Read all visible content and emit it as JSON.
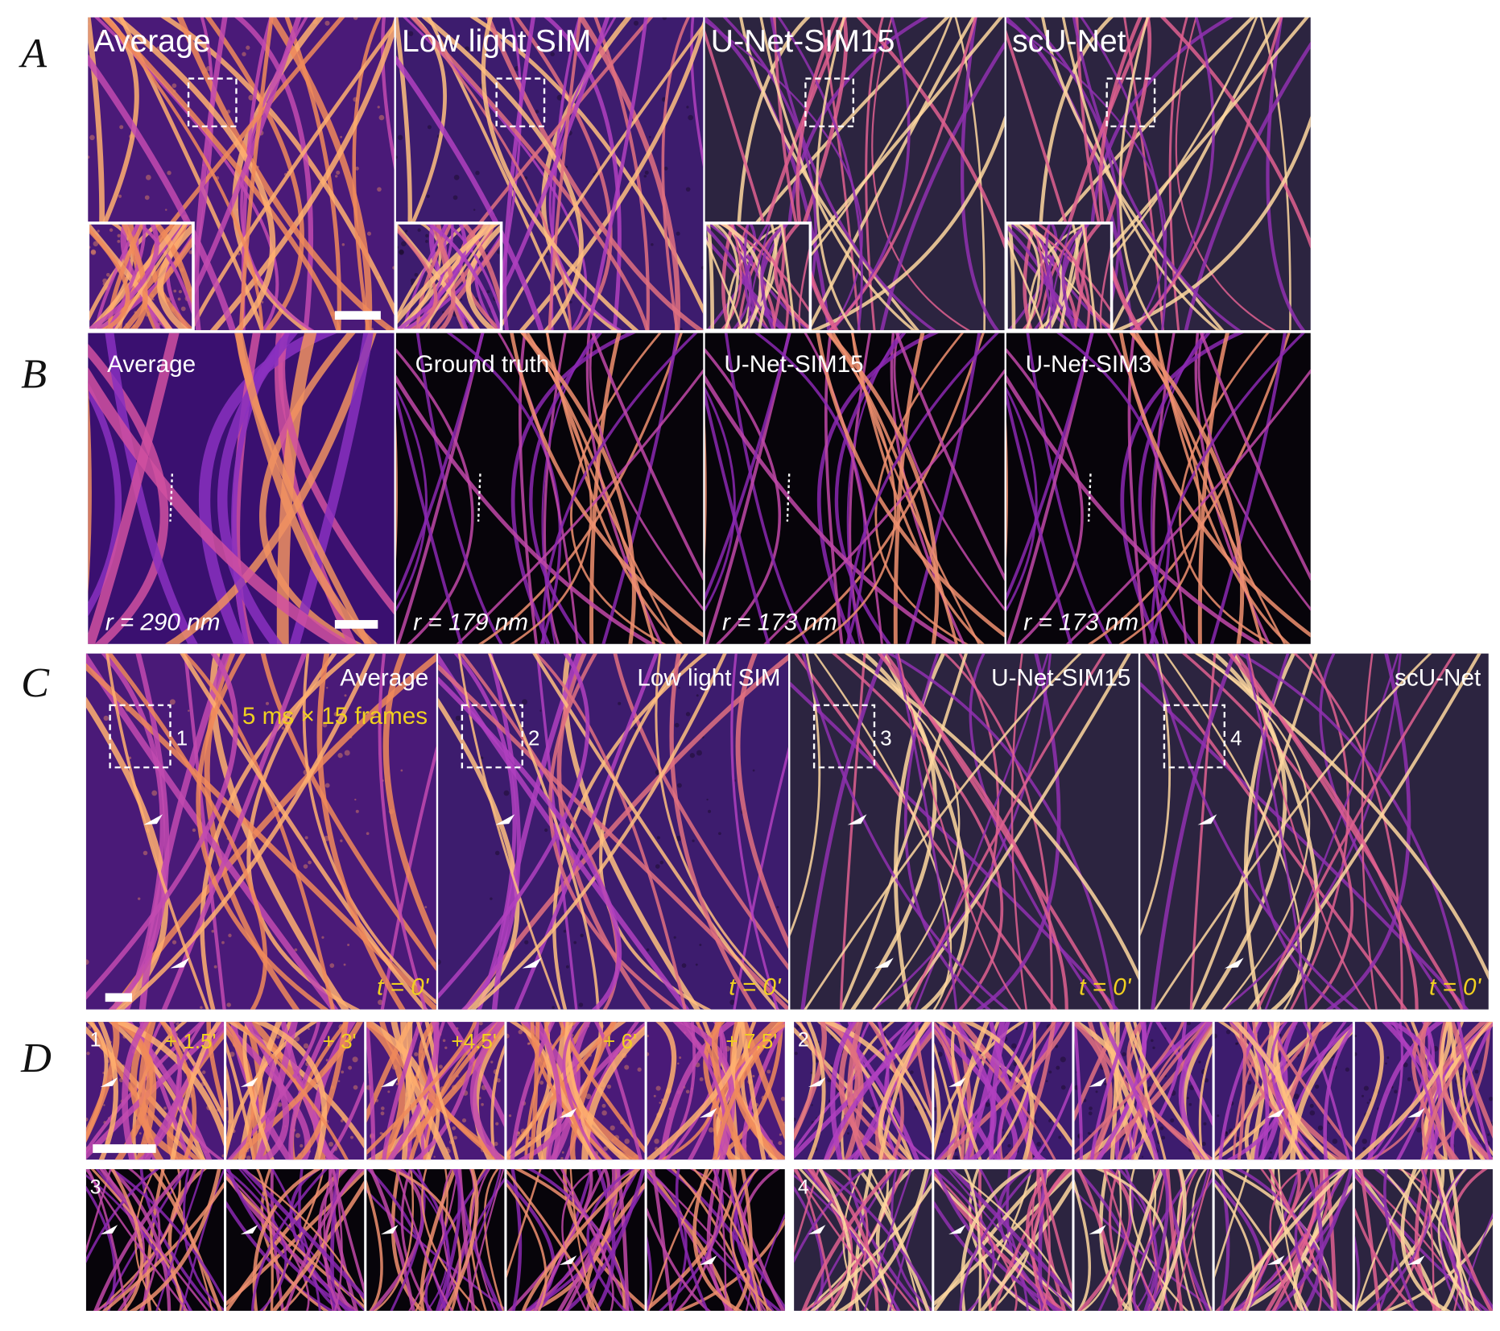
{
  "figure": {
    "A": {
      "letter": "A",
      "labels": [
        "Average",
        "Low light SIM",
        "U-Net-SIM15",
        "scU-Net"
      ]
    },
    "B": {
      "letter": "B",
      "labels": [
        "Average",
        "Ground truth",
        "U-Net-SIM15",
        "U-Net-SIM3"
      ],
      "resolutions": [
        "r = 290 nm",
        "r = 179 nm",
        "r = 173 nm",
        "r = 173 nm"
      ]
    },
    "C": {
      "letter": "C",
      "labels": [
        "Average",
        "Low light SIM",
        "U-Net-SIM15",
        "scU-Net"
      ],
      "exposure": "5 ms × 15 frames",
      "roi_numbers": [
        "1",
        "2",
        "3",
        "4"
      ],
      "times": [
        "t = 0'",
        "t = 0'",
        "t = 0'",
        "t = 0'"
      ]
    },
    "D": {
      "letter": "D",
      "row_numbers": [
        "1",
        "2",
        "3",
        "4"
      ],
      "times": [
        "+ 1.5'",
        "+ 3'",
        "+4.5'",
        "+ 6'",
        "+ 7.5'"
      ]
    }
  }
}
